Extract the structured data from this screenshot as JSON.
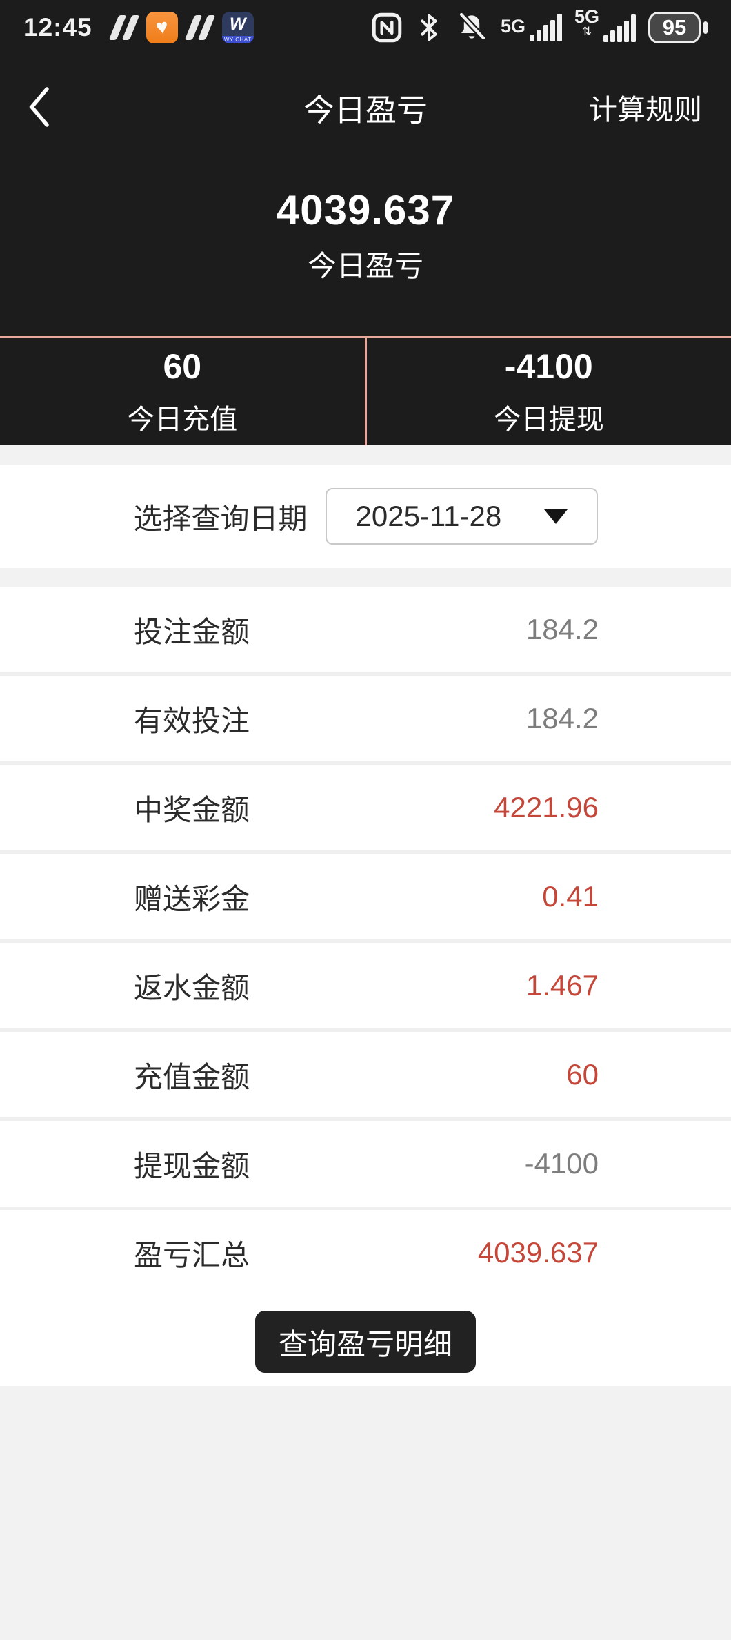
{
  "status_bar": {
    "time": "12:45",
    "signal_label": "5G",
    "battery": "95",
    "wychat_initial": "W",
    "wychat_label": "WY CHAT"
  },
  "header": {
    "title": "今日盈亏",
    "action": "计算规则"
  },
  "hero": {
    "amount": "4039.637",
    "label": "今日盈亏"
  },
  "summary": [
    {
      "value": "60",
      "label": "今日充值"
    },
    {
      "value": "-4100",
      "label": "今日提现"
    }
  ],
  "date_picker": {
    "label": "选择查询日期",
    "value": "2025-11-28"
  },
  "details": {
    "rows": [
      {
        "label": "投注金额",
        "value": "184.2",
        "color": "gray"
      },
      {
        "label": "有效投注",
        "value": "184.2",
        "color": "gray"
      },
      {
        "label": "中奖金额",
        "value": "4221.96",
        "color": "red"
      },
      {
        "label": "赠送彩金",
        "value": "0.41",
        "color": "red"
      },
      {
        "label": "返水金额",
        "value": "1.467",
        "color": "red"
      },
      {
        "label": "充值金额",
        "value": "60",
        "color": "red"
      },
      {
        "label": "提现金额",
        "value": "-4100",
        "color": "gray"
      },
      {
        "label": "盈亏汇总",
        "value": "4039.637",
        "color": "red"
      }
    ]
  },
  "button": {
    "label": "查询盈亏明细"
  },
  "colors": {
    "dark_bg": "#1c1c1c",
    "accent_divider": "#e8a79d",
    "accent_red": "#c4473a",
    "value_gray": "#7d7d7d",
    "page_bg": "#f2f2f2"
  }
}
